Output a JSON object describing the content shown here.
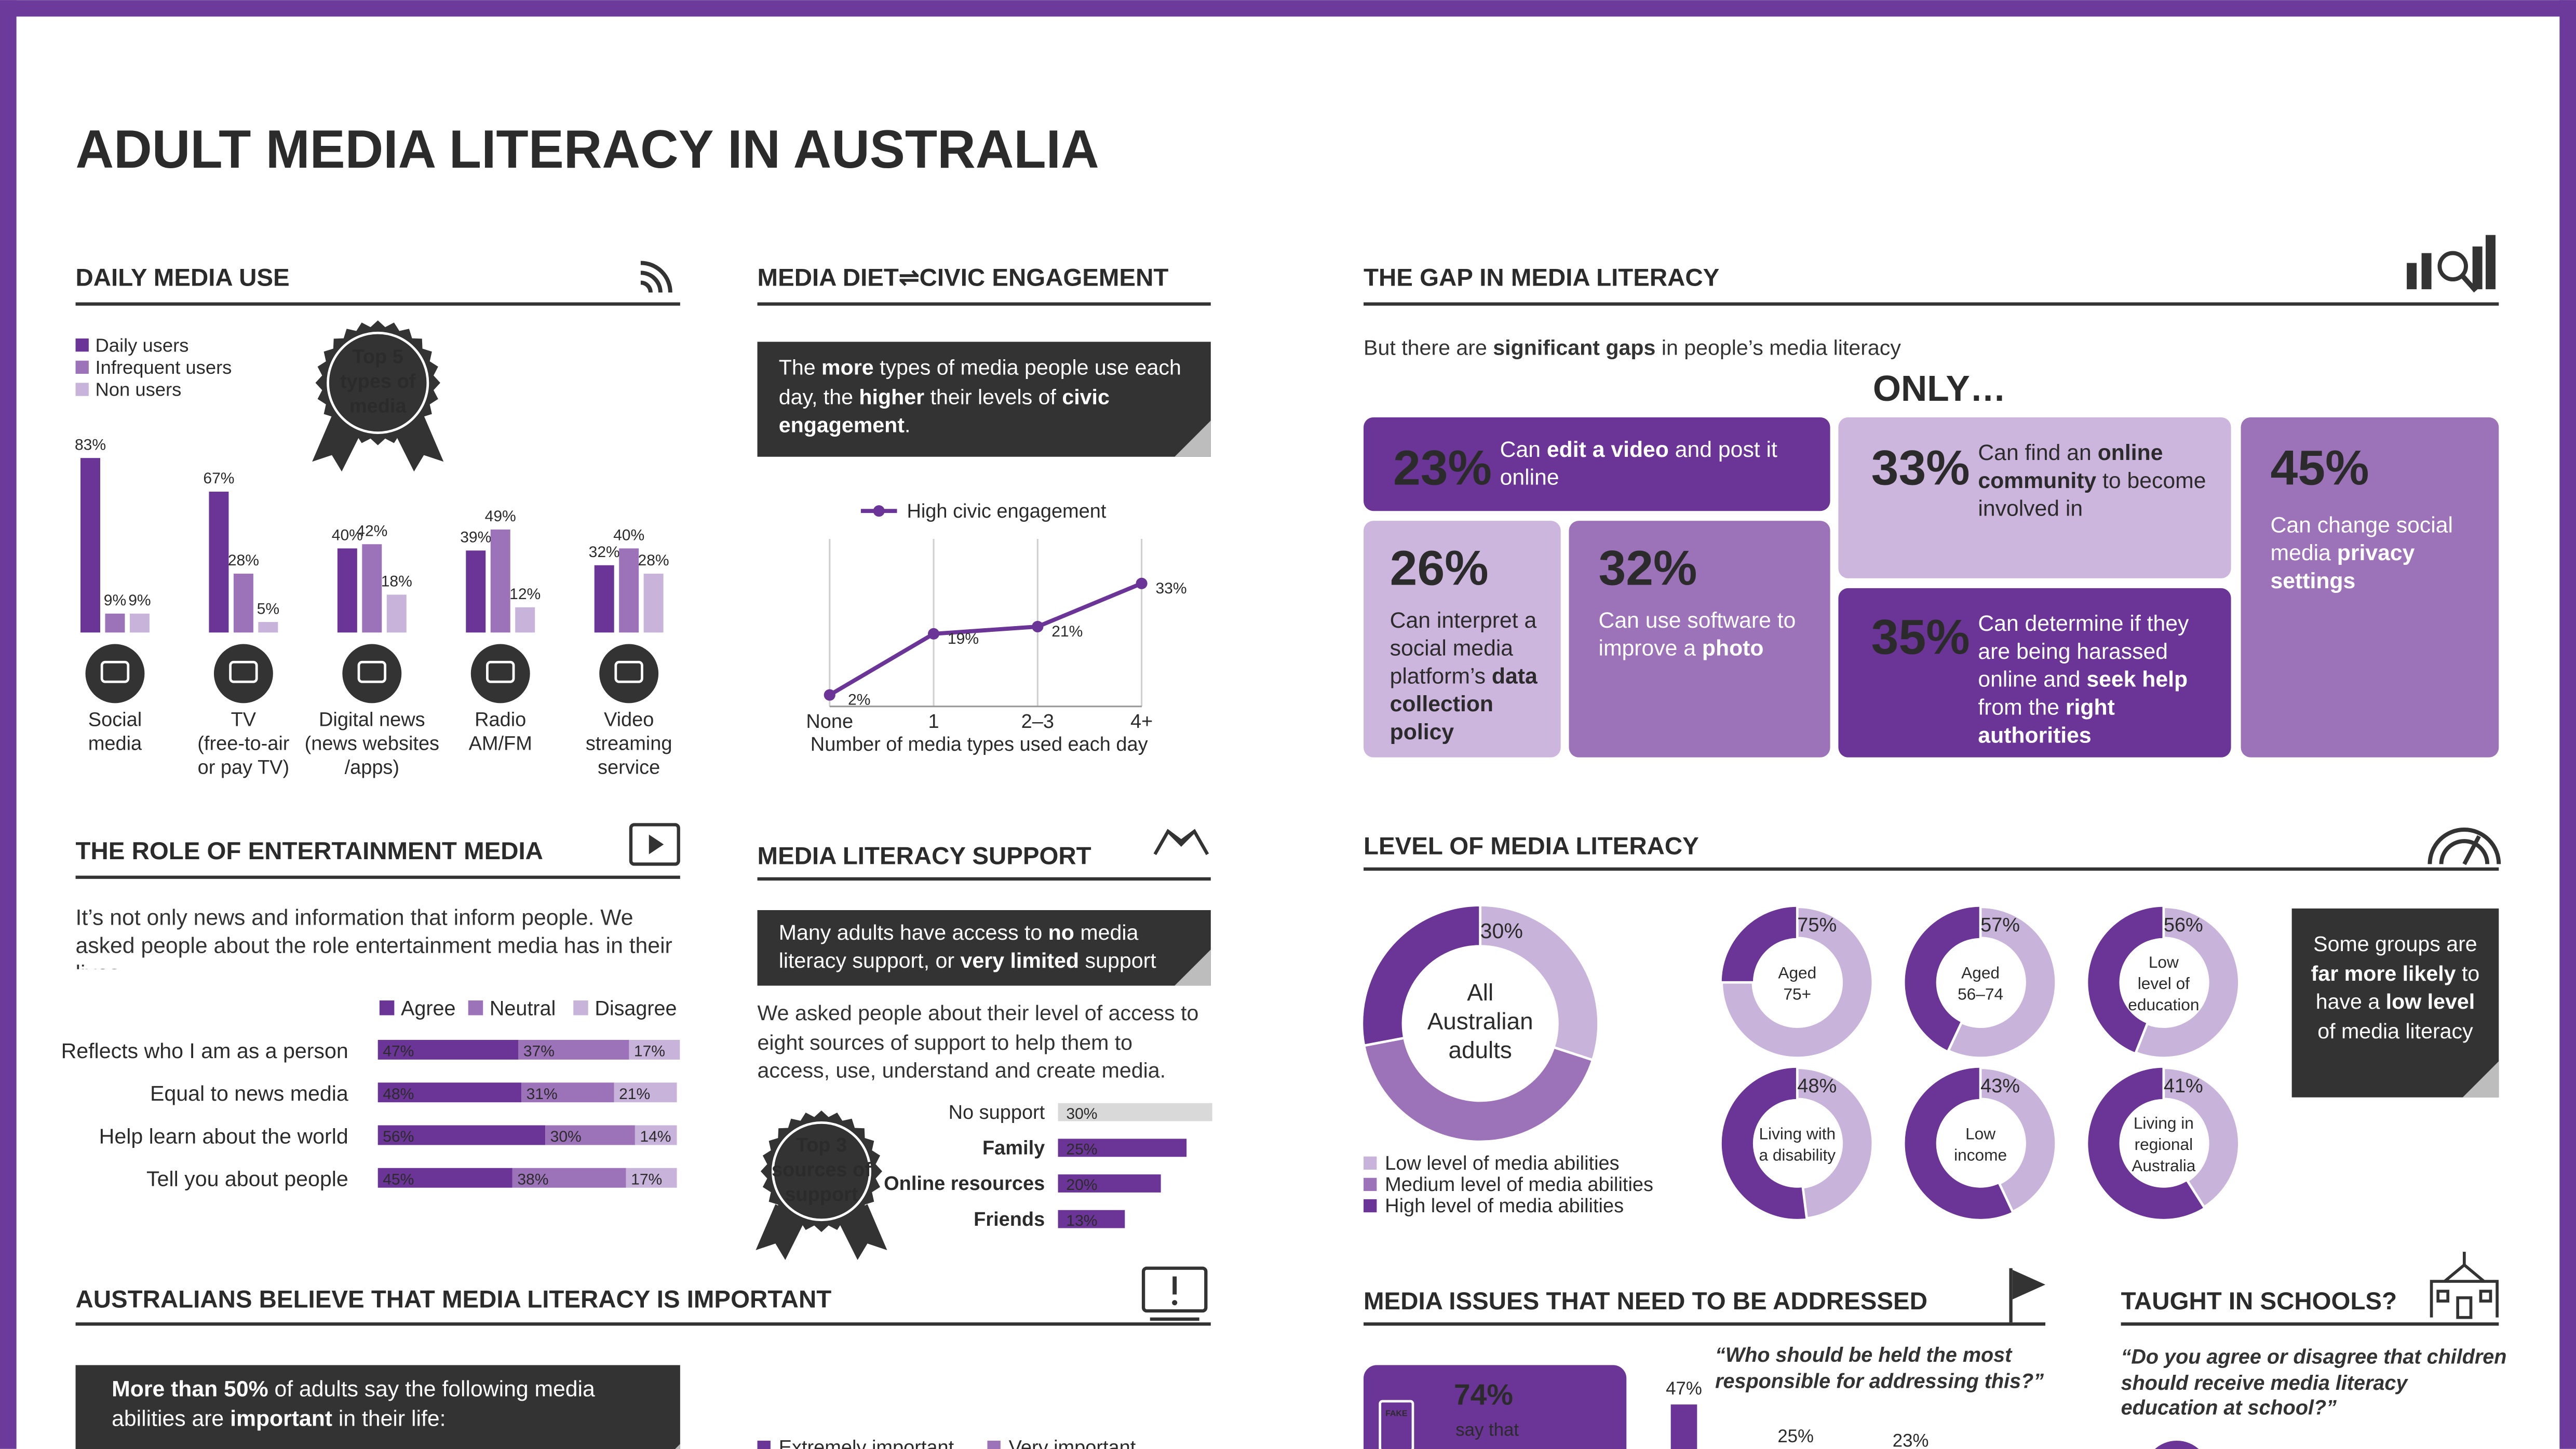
{
  "title": "ADULT MEDIA LITERACY IN AUSTRALIA",
  "daily_media_use": {
    "heading": "DAILY MEDIA USE",
    "badge": [
      "Top 5",
      "types of",
      "media"
    ],
    "categories": [
      [
        "Social",
        "media"
      ],
      [
        "TV",
        "(free-to-air",
        "or pay TV)"
      ],
      [
        "Digital news",
        "(news websites",
        "/apps)"
      ],
      [
        "Radio",
        "AM/FM"
      ],
      [
        "Video",
        "streaming",
        "service"
      ]
    ],
    "series": [
      {
        "name": "Daily users",
        "color": "#6a3596",
        "values": [
          83,
          67,
          40,
          39,
          32
        ],
        "value_labels": [
          "83%",
          "67%",
          "40%",
          "39%",
          "32%"
        ]
      },
      {
        "name": "Infrequent users",
        "color": "#9c72b9",
        "values": [
          9,
          28,
          42,
          49,
          40
        ],
        "value_labels": [
          "9%",
          "28%",
          "42%",
          "49%",
          "40%"
        ]
      },
      {
        "name": "Non users",
        "color": "#c8b3da",
        "values": [
          9,
          5,
          18,
          12,
          28
        ],
        "value_labels": [
          "9%",
          "5%",
          "18%",
          "12%",
          "28%"
        ]
      }
    ]
  },
  "media_diet": {
    "heading": "MEDIA DIET⇌CIVIC ENGAGEMENT",
    "callout": [
      "The ",
      {
        "bold": "more"
      },
      " types of media people use each day, the ",
      {
        "bold": "higher"
      },
      " their levels of ",
      {
        "bold": "civic engagement"
      },
      "."
    ],
    "chart": {
      "type": "line",
      "series_name": "High civic engagement",
      "color": "#6a3596",
      "categories": [
        "None",
        "1",
        "2–3",
        "4+"
      ],
      "values": [
        2,
        19,
        21,
        33
      ],
      "value_labels": [
        "2%",
        "19%",
        "21%",
        "33%"
      ],
      "x_label": "Number of media types used each day"
    }
  },
  "gap": {
    "heading": "THE GAP IN MEDIA LITERACY",
    "intro": [
      "But there are ",
      {
        "bold": "significant gaps"
      },
      " in people’s media literacy"
    ],
    "only": "ONLY…",
    "items": [
      {
        "stat": "23%",
        "text": [
          "Can ",
          {
            "bold": "edit a video"
          },
          " and post it online"
        ]
      },
      {
        "stat": "26%",
        "text": [
          "Can interpret a social media platform’s ",
          {
            "bold": "data collection policy"
          }
        ]
      },
      {
        "stat": "32%",
        "text": [
          "Can use software to improve a ",
          {
            "bold": "photo"
          }
        ]
      },
      {
        "stat": "33%",
        "text": [
          "Can find an ",
          {
            "bold": "online community"
          },
          " to become involved in"
        ]
      },
      {
        "stat": "35%",
        "text": [
          "Can determine if they are being harassed online and ",
          {
            "bold": "seek help"
          },
          " from the ",
          {
            "bold": "right authorities"
          }
        ]
      },
      {
        "stat": "45%",
        "text": [
          "Can change social media ",
          {
            "bold": "privacy settings"
          }
        ]
      }
    ]
  },
  "entertainment": {
    "heading": "THE ROLE OF ENTERTAINMENT MEDIA",
    "intro": "It’s not only news and information that inform people. We asked people about the role entertainment media has in their lives…",
    "categories": [
      "Reflects who I am as a person",
      "Equal to news media",
      "Help learn about the world",
      "Tell you about people"
    ],
    "series": [
      {
        "name": "Agree",
        "color": "#6a3596",
        "values": [
          47,
          48,
          56,
          45
        ],
        "value_labels": [
          "47%",
          "48%",
          "56%",
          "45%"
        ]
      },
      {
        "name": "Neutral",
        "color": "#9c72b9",
        "values": [
          37,
          31,
          30,
          38
        ],
        "value_labels": [
          "37%",
          "31%",
          "30%",
          "38%"
        ]
      },
      {
        "name": "Disagree",
        "color": "#c8b3da",
        "values": [
          17,
          21,
          14,
          17
        ],
        "value_labels": [
          "17%",
          "21%",
          "14%",
          "17%"
        ]
      }
    ]
  },
  "support": {
    "heading": "MEDIA LITERACY SUPPORT",
    "callout": [
      "Many adults have access to ",
      {
        "bold": "no"
      },
      " media literacy support, or ",
      {
        "bold": "very limited"
      },
      " support"
    ],
    "intro": "We asked people about their level of access to eight sources of support to help them to access, use, understand and create media.",
    "badge": [
      "Top 3",
      "sources of",
      "support"
    ],
    "categories": [
      "No support",
      "Family",
      "Online resources",
      "Friends"
    ],
    "values": [
      30,
      25,
      20,
      13
    ],
    "value_labels": [
      "30%",
      "25%",
      "20%",
      "13%"
    ],
    "colors": [
      "#d9d9d9",
      "#6a3596",
      "#6a3596",
      "#6a3596"
    ]
  },
  "importance": {
    "heading": "AUSTRALIANS BELIEVE THAT MEDIA LITERACY IS IMPORTANT",
    "callout": [
      {
        "bold": "More than 50%"
      },
      " of adults say the following media abilities are ",
      {
        "bold": "important"
      },
      " in their life:"
    ],
    "legend": [
      {
        "name": "Extremely important",
        "color": "#6a3596"
      },
      {
        "name": "Very important",
        "color": "#9c72b9"
      }
    ]
  },
  "literacy_level": {
    "heading": "LEVEL OF MEDIA LITERACY",
    "series": [
      {
        "name": "Low level of media abilities",
        "color": "#c8b3da"
      },
      {
        "name": "Medium level of media abilities",
        "color": "#9c72b9"
      },
      {
        "name": "High level of media abilities",
        "color": "#6a3596"
      }
    ],
    "overall": {
      "label": [
        "All",
        "Australian",
        "adults"
      ],
      "low": {
        "value": 30,
        "label": "30%"
      },
      "medium": 42,
      "high": 28
    },
    "groups": [
      {
        "label": [
          "Aged",
          "75+"
        ],
        "value": 75,
        "value_label": "75%"
      },
      {
        "label": [
          "Aged",
          "56–74"
        ],
        "value": 57,
        "value_label": "57%"
      },
      {
        "label": [
          "Low",
          "level of",
          "education"
        ],
        "value": 56,
        "value_label": "56%"
      },
      {
        "label": [
          "Living with",
          "a disability"
        ],
        "value": 48,
        "value_label": "48%"
      },
      {
        "label": [
          "Low",
          "income"
        ],
        "value": 43,
        "value_label": "43%"
      },
      {
        "label": [
          "Living in",
          "regional",
          "Australia"
        ],
        "value": 41,
        "value_label": "41%"
      }
    ],
    "callout": [
      "Some groups are ",
      {
        "bold": "far more likely"
      },
      " to have a ",
      {
        "bold": "low level"
      },
      " of media literacy"
    ]
  },
  "issues": {
    "heading": "MEDIA ISSUES THAT NEED TO BE ADDRESSED",
    "icon_text": "FAKE",
    "stat": "74%",
    "stat_text": "say that",
    "quote": "“Who should be held the most responsible for addressing this?”",
    "values": [
      47,
      25,
      23
    ],
    "value_labels": [
      "47%",
      "25%",
      "23%"
    ]
  },
  "schools": {
    "heading": "TAUGHT IN SCHOOLS?",
    "quote": "“Do you agree or disagree that children should receive media literacy education at school?”"
  }
}
